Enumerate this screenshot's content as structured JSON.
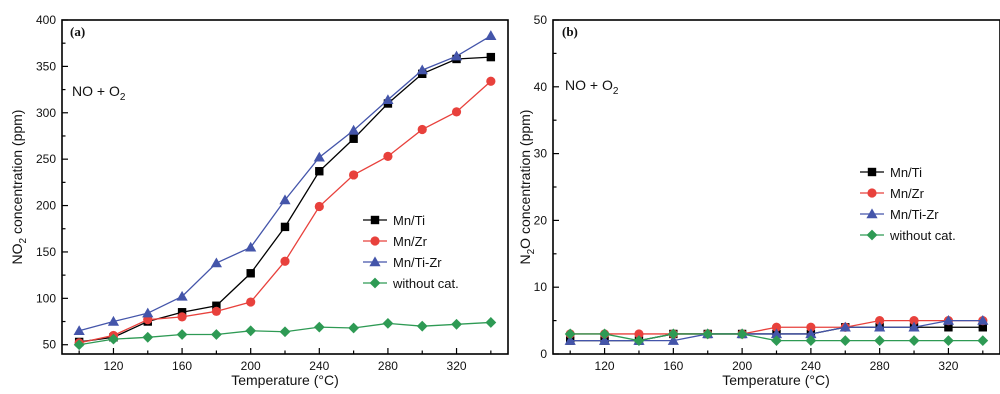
{
  "chart_data": [
    {
      "type": "line",
      "panel_label": "(a)",
      "annotation": "NO + O",
      "annotation_sub": "2",
      "ylabel_main": "NO",
      "ylabel_sub": "2",
      "ylabel_rest": " concentration (ppm)",
      "xlabel": "Temperature (°C)",
      "xlim": [
        90,
        350
      ],
      "ylim": [
        40,
        400
      ],
      "xticks": [
        120,
        160,
        200,
        240,
        280,
        320
      ],
      "yticks": [
        50,
        100,
        150,
        200,
        250,
        300,
        350,
        400
      ],
      "legend_position": "right-middle",
      "x": [
        100,
        120,
        140,
        160,
        180,
        200,
        220,
        240,
        260,
        280,
        300,
        320,
        340
      ],
      "series": [
        {
          "name": "Mn/Ti",
          "color": "#000000",
          "marker": "square",
          "values": [
            53,
            58,
            75,
            85,
            92,
            127,
            177,
            237,
            272,
            310,
            342,
            358,
            360
          ]
        },
        {
          "name": "Mn/Zr",
          "color": "#e8413c",
          "marker": "circle",
          "values": [
            52,
            60,
            77,
            80,
            86,
            96,
            140,
            199,
            233,
            253,
            282,
            301,
            334
          ]
        },
        {
          "name": "Mn/Ti-Zr",
          "color": "#4455aa",
          "marker": "triangle",
          "values": [
            65,
            75,
            84,
            102,
            138,
            155,
            206,
            252,
            281,
            314,
            346,
            361,
            383
          ]
        },
        {
          "name": "without cat.",
          "color": "#2e9a54",
          "marker": "diamond",
          "values": [
            50,
            56,
            58,
            61,
            61,
            65,
            64,
            69,
            68,
            73,
            70,
            72,
            74
          ]
        }
      ]
    },
    {
      "type": "line",
      "panel_label": "(b)",
      "annotation": "NO + O",
      "annotation_sub": "2",
      "ylabel_main": "N",
      "ylabel_sub": "2",
      "ylabel_rest": "O concentration (ppm)",
      "xlabel": "Temperature (°C)",
      "xlim": [
        90,
        350
      ],
      "ylim": [
        0,
        50
      ],
      "xticks": [
        120,
        160,
        200,
        240,
        280,
        320
      ],
      "yticks": [
        0,
        10,
        20,
        30,
        40,
        50
      ],
      "legend_position": "right-middle",
      "x": [
        100,
        120,
        140,
        160,
        180,
        200,
        220,
        240,
        260,
        280,
        300,
        320,
        340
      ],
      "series": [
        {
          "name": "Mn/Ti",
          "color": "#000000",
          "marker": "square",
          "values": [
            2,
            2,
            2,
            3,
            3,
            3,
            3,
            3,
            4,
            4,
            4,
            4,
            4
          ]
        },
        {
          "name": "Mn/Zr",
          "color": "#e8413c",
          "marker": "circle",
          "values": [
            3,
            3,
            3,
            3,
            3,
            3,
            4,
            4,
            4,
            5,
            5,
            5,
            5
          ]
        },
        {
          "name": "Mn/Ti-Zr",
          "color": "#4455aa",
          "marker": "triangle",
          "values": [
            2,
            2,
            2,
            2,
            3,
            3,
            3,
            3,
            4,
            4,
            4,
            5,
            5
          ]
        },
        {
          "name": "without cat.",
          "color": "#2e9a54",
          "marker": "diamond",
          "values": [
            3,
            3,
            2,
            3,
            3,
            3,
            2,
            2,
            2,
            2,
            2,
            2,
            2
          ]
        }
      ]
    }
  ]
}
